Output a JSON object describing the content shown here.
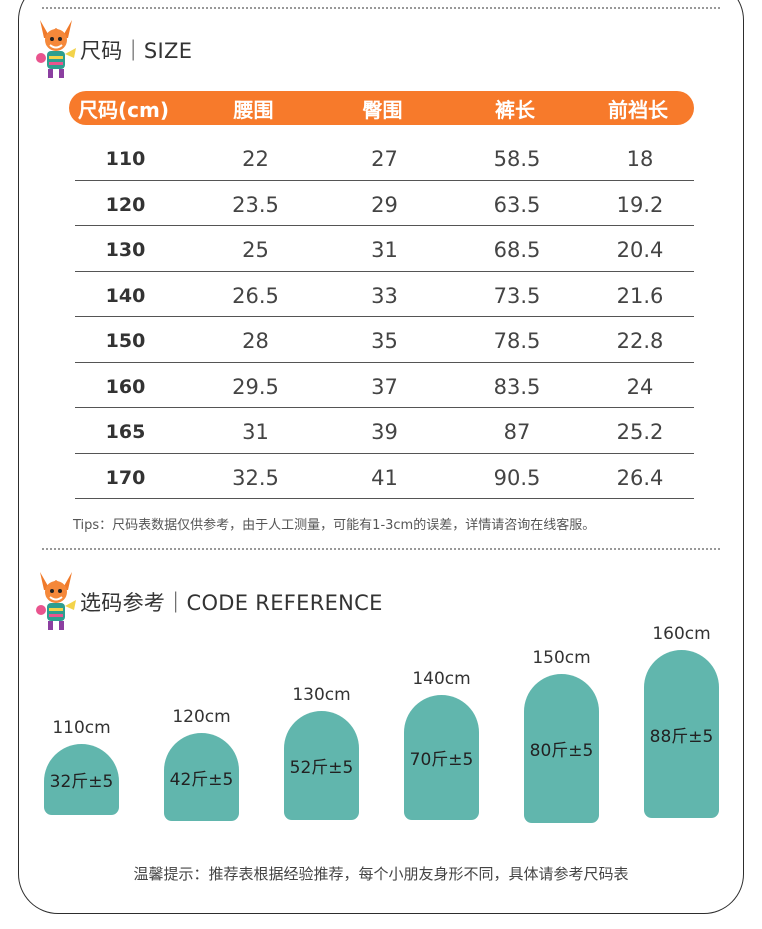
{
  "size_section": {
    "title": "尺码｜SIZE",
    "headers": [
      "尺码(cm)",
      "腰围",
      "臀围",
      "裤长",
      "前裆长"
    ],
    "rows": [
      [
        "110",
        "22",
        "27",
        "58.5",
        "18"
      ],
      [
        "120",
        "23.5",
        "29",
        "63.5",
        "19.2"
      ],
      [
        "130",
        "25",
        "31",
        "68.5",
        "20.4"
      ],
      [
        "140",
        "26.5",
        "33",
        "73.5",
        "21.6"
      ],
      [
        "150",
        "28",
        "35",
        "78.5",
        "22.8"
      ],
      [
        "160",
        "29.5",
        "37",
        "83.5",
        "24"
      ],
      [
        "165",
        "31",
        "39",
        "87",
        "25.2"
      ],
      [
        "170",
        "32.5",
        "41",
        "90.5",
        "26.4"
      ]
    ],
    "tips": "Tips：尺码表数据仅供参考，由于人工测量，可能有1-3cm的误差，详情请咨询在线客服。"
  },
  "reference_section": {
    "title": "选码参考｜CODE REFERENCE",
    "items": [
      {
        "height_label": "110cm",
        "weight_label": "32斤±5"
      },
      {
        "height_label": "120cm",
        "weight_label": "42斤±5"
      },
      {
        "height_label": "130cm",
        "weight_label": "52斤±5"
      },
      {
        "height_label": "140cm",
        "weight_label": "70斤±5"
      },
      {
        "height_label": "150cm",
        "weight_label": "80斤±5"
      },
      {
        "height_label": "160cm",
        "weight_label": "88斤±5"
      }
    ],
    "note": "温馨提示：推荐表根据经验推荐，每个小朋友身形不同，具体请参考尺码表"
  },
  "colors": {
    "accent_orange": "#f77a2b",
    "bubble_teal": "#61b6ad"
  },
  "icons": [
    "fox-mascot-icon"
  ]
}
